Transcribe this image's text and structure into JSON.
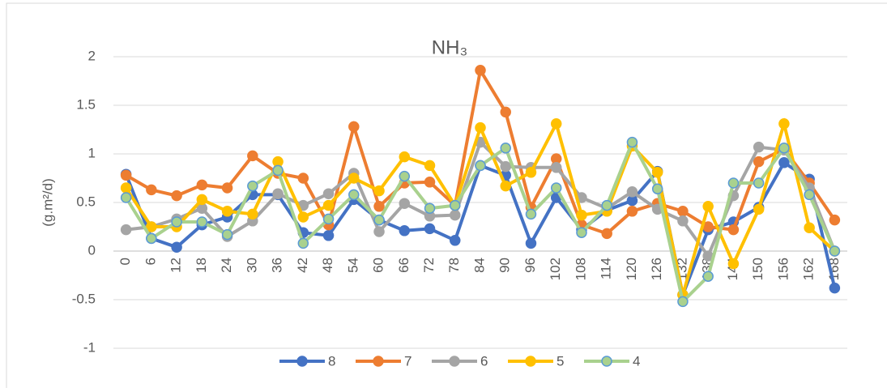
{
  "chart_data": {
    "type": "line",
    "title": "NH₃",
    "y_label": "(g.m²/d)",
    "categories": [
      "0",
      "6",
      "12",
      "18",
      "24",
      "30",
      "36",
      "42",
      "48",
      "54",
      "60",
      "66",
      "72",
      "78",
      "84",
      "90",
      "96",
      "102",
      "108",
      "114",
      "120",
      "126",
      "132",
      "138",
      "144",
      "150",
      "156",
      "162",
      "168"
    ],
    "ylim": [
      -1,
      2
    ],
    "yticks": [
      -1,
      -0.5,
      0,
      0.5,
      1,
      1.5,
      2
    ],
    "grid": true,
    "series": [
      {
        "name": "8",
        "color": "#4472c4",
        "values": [
          0.79,
          0.13,
          0.04,
          0.27,
          0.35,
          0.58,
          0.58,
          0.19,
          0.16,
          0.53,
          0.32,
          0.21,
          0.23,
          0.11,
          0.88,
          0.78,
          0.08,
          0.55,
          0.22,
          0.42,
          0.52,
          0.82,
          -0.45,
          0.22,
          0.3,
          0.45,
          0.91,
          0.74,
          -0.38
        ]
      },
      {
        "name": "7",
        "color": "#ed7d31",
        "values": [
          0.78,
          0.63,
          0.57,
          0.68,
          0.65,
          0.98,
          0.8,
          0.75,
          0.27,
          1.28,
          0.46,
          0.7,
          0.71,
          0.47,
          1.86,
          1.43,
          0.45,
          0.95,
          0.27,
          0.18,
          0.41,
          0.49,
          0.41,
          0.25,
          0.22,
          0.92,
          1.05,
          0.7,
          0.32
        ]
      },
      {
        "name": "6",
        "color": "#a5a5a5",
        "values": [
          0.22,
          0.25,
          0.33,
          0.44,
          0.15,
          0.31,
          0.59,
          0.47,
          0.59,
          0.8,
          0.2,
          0.49,
          0.36,
          0.37,
          1.12,
          0.87,
          0.86,
          0.86,
          0.55,
          0.44,
          0.61,
          0.43,
          0.31,
          -0.05,
          0.57,
          1.07,
          1.04,
          0.65,
          0.0
        ]
      },
      {
        "name": "5",
        "color": "#ffc000",
        "values": [
          0.65,
          0.25,
          0.25,
          0.53,
          0.41,
          0.38,
          0.92,
          0.35,
          0.47,
          0.75,
          0.62,
          0.97,
          0.88,
          0.47,
          1.27,
          0.67,
          0.81,
          1.31,
          0.37,
          0.41,
          1.08,
          0.81,
          -0.45,
          0.46,
          -0.13,
          0.43,
          1.31,
          0.24,
          0.0
        ]
      },
      {
        "name": "4",
        "color": "#a9d18e",
        "values": [
          0.55,
          0.13,
          0.3,
          0.3,
          0.17,
          0.67,
          0.83,
          0.08,
          0.33,
          0.58,
          0.32,
          0.77,
          0.44,
          0.47,
          0.88,
          1.06,
          0.38,
          0.65,
          0.19,
          0.47,
          1.12,
          0.64,
          -0.52,
          -0.26,
          0.7,
          0.7,
          1.06,
          0.58,
          0.0
        ]
      }
    ]
  }
}
